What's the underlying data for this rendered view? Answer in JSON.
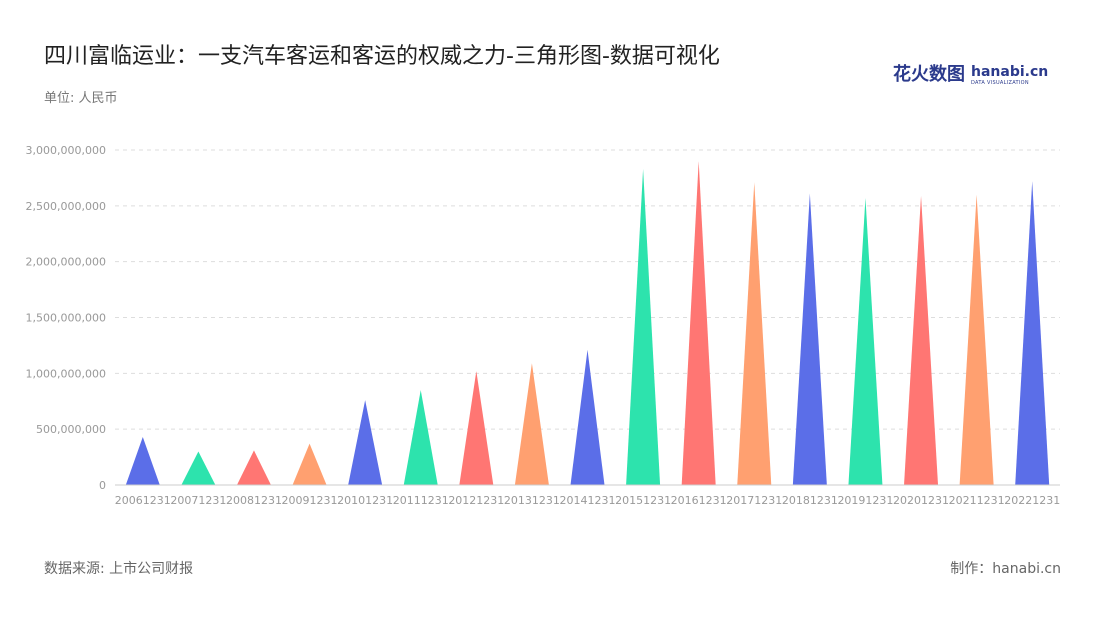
{
  "header": {
    "title": "四川富临运业：一支汽车客运和客运的权威之力-三角形图-数据可视化",
    "unit": "单位: 人民币"
  },
  "logo": {
    "cn": "花火数图",
    "en": "hanabi.cn",
    "en_sub": "DATA VISUALIZATION",
    "brand_color": "#2b3a8c"
  },
  "footer": {
    "source": "数据来源: 上市公司财报",
    "maker": "制作：hanabi.cn"
  },
  "chart_data": {
    "type": "bar",
    "shape": "triangle",
    "categories": [
      "20061231",
      "20071231",
      "20081231",
      "20091231",
      "20101231",
      "20111231",
      "20121231",
      "20131231",
      "20141231",
      "20151231",
      "20161231",
      "20171231",
      "20181231",
      "20191231",
      "20201231",
      "20211231",
      "20221231"
    ],
    "values": [
      430000000,
      300000000,
      310000000,
      370000000,
      760000000,
      850000000,
      1020000000,
      1090000000,
      1210000000,
      2830000000,
      2900000000,
      2710000000,
      2610000000,
      2570000000,
      2590000000,
      2600000000,
      2720000000
    ],
    "colors": [
      "#5b6ee8",
      "#2de3ad",
      "#ff7673",
      "#ffa070"
    ],
    "ylim": [
      0,
      3000000000
    ],
    "yticks": [
      0,
      500000000,
      1000000000,
      1500000000,
      2000000000,
      2500000000,
      3000000000
    ],
    "ytick_labels": [
      "0",
      "500,000,000",
      "1,000,000,000",
      "1,500,000,000",
      "2,000,000,000",
      "2,500,000,000",
      "3,000,000,000"
    ],
    "grid": true
  }
}
